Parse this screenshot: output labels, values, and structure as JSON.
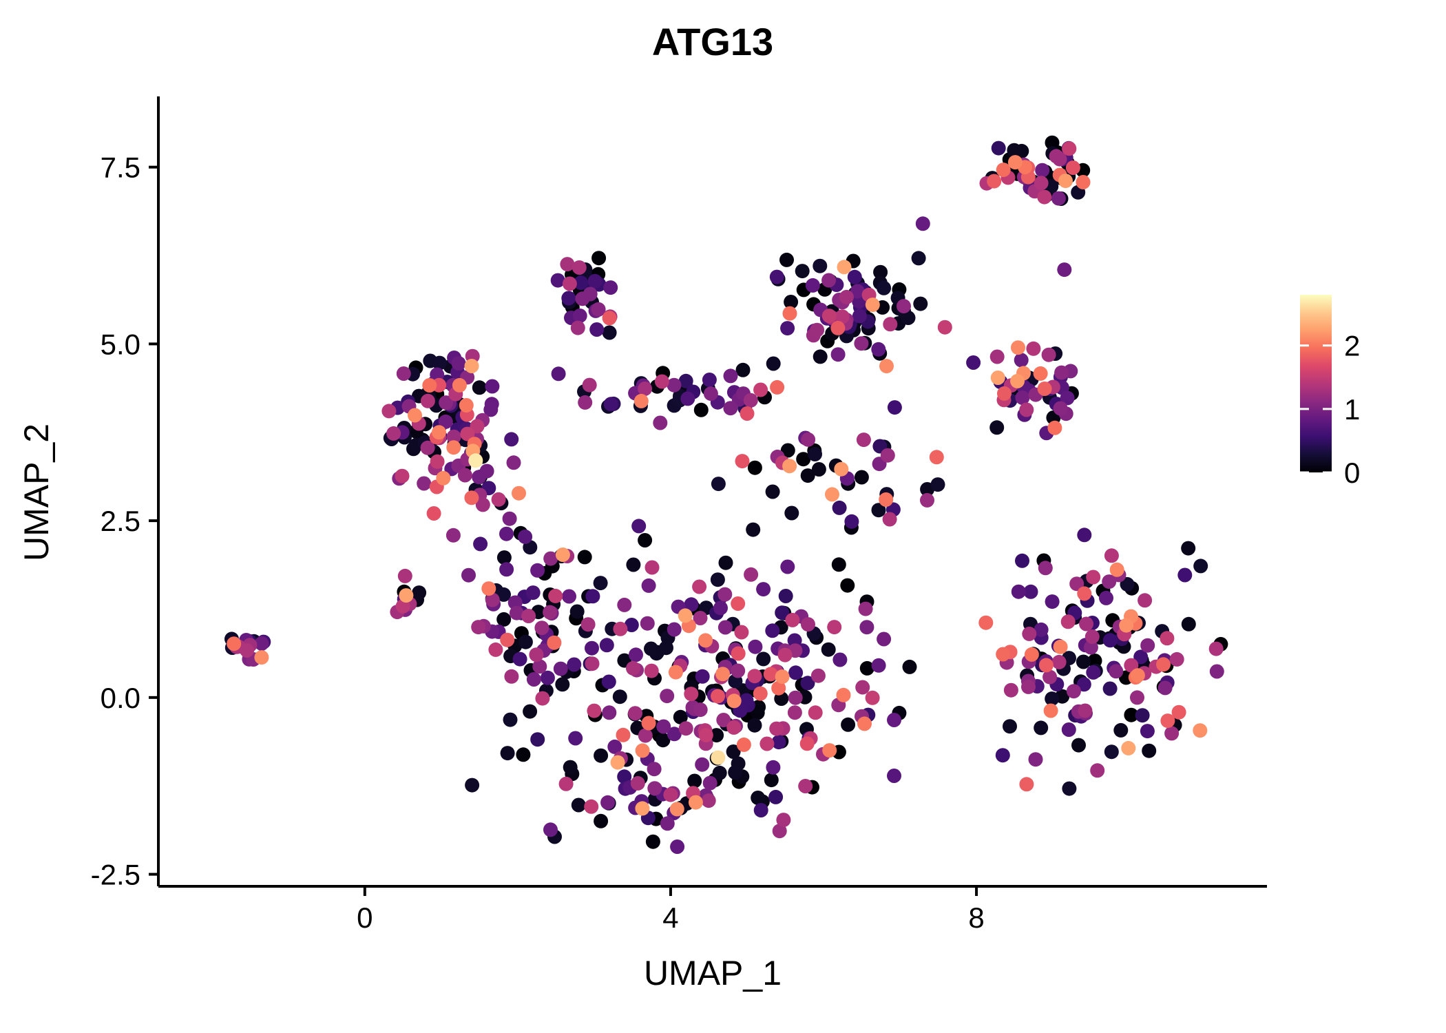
{
  "figure": {
    "title": "ATG13"
  },
  "chart_data": {
    "type": "scatter",
    "title": "ATG13",
    "xlabel": "UMAP_1",
    "ylabel": "UMAP_2",
    "xlim": [
      -2.7,
      11.8
    ],
    "ylim": [
      -2.67,
      8.5
    ],
    "x_ticks": [
      0,
      4,
      8
    ],
    "x_tick_labels": [
      "0",
      "4",
      "8"
    ],
    "y_ticks": [
      -2.5,
      0.0,
      2.5,
      5.0,
      7.5
    ],
    "y_tick_labels": [
      "-2.5",
      "0.0",
      "2.5",
      "5.0",
      "7.5"
    ],
    "grid": false,
    "background": "#ffffff",
    "axis_color": "#000000",
    "point_radius_px": 10.5,
    "colorbar": {
      "position": "right",
      "vmin": 0,
      "vmax": 2.8,
      "ticks": [
        0,
        1,
        2
      ],
      "tick_labels": [
        "0",
        "1",
        "2"
      ],
      "colormap": "magma"
    },
    "colormap_stops": [
      [
        0.0,
        "#000004"
      ],
      [
        0.1,
        "#140e36"
      ],
      [
        0.2,
        "#3b0f70"
      ],
      [
        0.3,
        "#641a80"
      ],
      [
        0.4,
        "#8c2981"
      ],
      [
        0.5,
        "#b73779"
      ],
      [
        0.6,
        "#de4968"
      ],
      [
        0.7,
        "#f7705c"
      ],
      [
        0.8,
        "#fe9f6d"
      ],
      [
        0.9,
        "#fec98d"
      ],
      [
        1.0,
        "#fcfdbf"
      ]
    ],
    "value_bins": [
      [
        0,
        0.25
      ],
      [
        0.45,
        0.95
      ],
      [
        0.95,
        1.5
      ],
      [
        1.7,
        2.3
      ],
      [
        2.55,
        2.75
      ]
    ],
    "clusters": [
      {
        "name": "far-left-island",
        "cx": -1.55,
        "cy": 0.7,
        "sx": 0.17,
        "sy": 0.09,
        "n": 16,
        "mix": [
          0.2,
          0.3,
          0.35,
          0.15,
          0
        ]
      },
      {
        "name": "left-upper",
        "cx": 1.05,
        "cy": 3.95,
        "sx": 0.36,
        "sy": 0.5,
        "n": 95,
        "mix": [
          0.28,
          0.24,
          0.26,
          0.22,
          0
        ],
        "bounds": [
          0.3,
          2.0,
          2.9,
          4.85
        ]
      },
      {
        "name": "left-upper-tail",
        "cx": 1.5,
        "cy": 2.75,
        "sx": 0.22,
        "sy": 0.3,
        "n": 18,
        "mix": [
          0.3,
          0.28,
          0.27,
          0.15,
          0
        ]
      },
      {
        "name": "top-left-small",
        "cx": 2.85,
        "cy": 5.75,
        "sx": 0.26,
        "sy": 0.3,
        "n": 32,
        "mix": [
          0.33,
          0.27,
          0.22,
          0.18,
          0
        ],
        "bounds": [
          2.3,
          3.5,
          5.0,
          6.3
        ]
      },
      {
        "name": "mid-band-a",
        "cx": 3.35,
        "cy": 4.35,
        "sx": 0.5,
        "sy": 0.22,
        "n": 22,
        "mix": [
          0.35,
          0.3,
          0.22,
          0.13,
          0
        ]
      },
      {
        "name": "mid-band-b",
        "cx": 4.8,
        "cy": 4.3,
        "sx": 0.45,
        "sy": 0.18,
        "n": 20,
        "mix": [
          0.3,
          0.3,
          0.25,
          0.15,
          0
        ]
      },
      {
        "name": "top-mid-right",
        "cx": 6.35,
        "cy": 5.45,
        "sx": 0.48,
        "sy": 0.4,
        "n": 82,
        "mix": [
          0.48,
          0.26,
          0.19,
          0.07,
          0
        ],
        "bounds": [
          5.2,
          7.6,
          4.3,
          6.3
        ]
      },
      {
        "name": "top-right",
        "cx": 8.9,
        "cy": 7.5,
        "sx": 0.4,
        "sy": 0.2,
        "n": 48,
        "mix": [
          0.3,
          0.18,
          0.27,
          0.25,
          0
        ],
        "bounds": [
          7.9,
          9.6,
          6.9,
          7.9
        ]
      },
      {
        "name": "right-mid",
        "cx": 8.75,
        "cy": 4.4,
        "sx": 0.38,
        "sy": 0.33,
        "n": 42,
        "mix": [
          0.38,
          0.22,
          0.25,
          0.15,
          0
        ],
        "bounds": [
          7.9,
          9.5,
          3.6,
          5.1
        ]
      },
      {
        "name": "right-lower",
        "cx": 9.6,
        "cy": 0.55,
        "sx": 0.7,
        "sy": 0.8,
        "n": 140,
        "mix": [
          0.34,
          0.24,
          0.29,
          0.13,
          0
        ],
        "bounds": [
          8.1,
          11.2,
          -1.7,
          2.3
        ]
      },
      {
        "name": "central",
        "cx": 4.4,
        "cy": 0.15,
        "sx": 1.3,
        "sy": 0.9,
        "n": 265,
        "mix": [
          0.42,
          0.26,
          0.24,
          0.08,
          0
        ],
        "bounds": [
          1.4,
          7.3,
          -1.9,
          2.5
        ]
      },
      {
        "name": "central-left",
        "cx": 2.1,
        "cy": 1.3,
        "sx": 0.45,
        "sy": 0.6,
        "n": 55,
        "mix": [
          0.38,
          0.27,
          0.25,
          0.1,
          0
        ],
        "bounds": [
          1.2,
          3.2,
          0.0,
          2.5
        ]
      },
      {
        "name": "bottom-tail",
        "cx": 3.6,
        "cy": -1.45,
        "sx": 0.75,
        "sy": 0.3,
        "n": 30,
        "mix": [
          0.33,
          0.3,
          0.27,
          0.1,
          0
        ]
      },
      {
        "name": "mid-scatter",
        "cx": 6.0,
        "cy": 3.2,
        "sx": 0.75,
        "sy": 0.55,
        "n": 40,
        "mix": [
          0.45,
          0.25,
          0.2,
          0.1,
          0
        ],
        "bounds": [
          4.6,
          7.5,
          2.2,
          4.2
        ]
      },
      {
        "name": "left-edge-small",
        "cx": 0.55,
        "cy": 1.35,
        "sx": 0.14,
        "sy": 0.13,
        "n": 10,
        "mix": [
          0.3,
          0.3,
          0.3,
          0.1,
          0
        ]
      }
    ],
    "highlight_points": [
      {
        "x": 1.45,
        "y": 3.35,
        "value": 2.7
      },
      {
        "x": 4.62,
        "y": -0.85,
        "value": 2.62
      },
      {
        "x": 7.3,
        "y": 6.7,
        "value": 0.85
      },
      {
        "x": 9.15,
        "y": 6.05,
        "value": 0.9
      }
    ]
  }
}
